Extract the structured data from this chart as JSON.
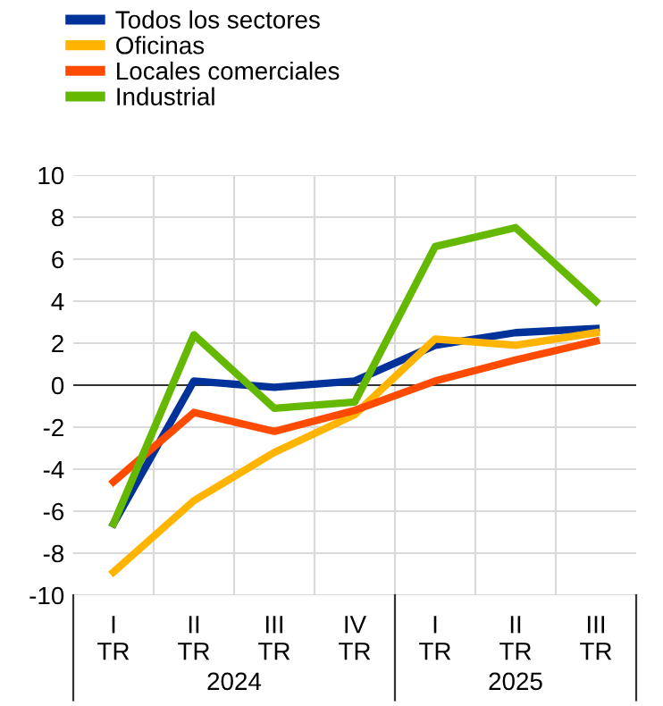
{
  "chart_data": {
    "type": "line",
    "categories": [
      "I\nTR",
      "II\nTR",
      "III\nTR",
      "IV\nTR",
      "I\nTR",
      "II\nTR",
      "III\nTR"
    ],
    "series": [
      {
        "name": "Todos los sectores",
        "color": "#003299",
        "values": [
          -6.6,
          0.2,
          -0.1,
          0.2,
          1.9,
          2.5,
          2.7
        ]
      },
      {
        "name": "Oficinas",
        "color": "#ffb400",
        "values": [
          -8.9,
          -5.5,
          -3.2,
          -1.4,
          2.2,
          1.9,
          2.5
        ]
      },
      {
        "name": "Locales comerciales",
        "color": "#ff4b00",
        "values": [
          -4.6,
          -1.3,
          -2.2,
          -1.2,
          0.2,
          1.2,
          2.1
        ]
      },
      {
        "name": "Industrial",
        "color": "#65b800",
        "values": [
          -6.6,
          2.4,
          -1.1,
          -0.8,
          6.6,
          7.5,
          4.0
        ]
      }
    ],
    "annotations": [
      "2024",
      "2025"
    ],
    "ylim": [
      -10,
      10
    ],
    "yticks": [
      -10,
      -8,
      -6,
      -4,
      -2,
      0,
      2,
      4,
      6,
      8,
      10
    ],
    "grid": true,
    "legend": "top left",
    "marker": "none",
    "line_style": "solid"
  }
}
